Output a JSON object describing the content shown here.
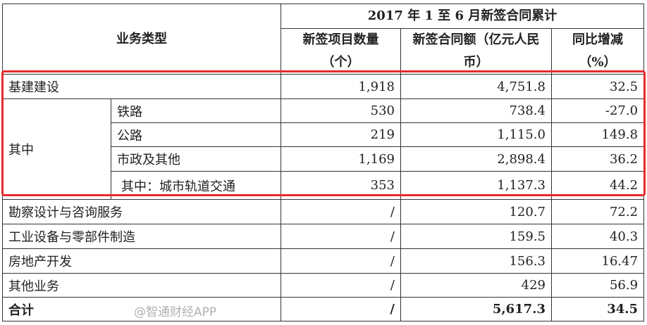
{
  "header": {
    "business_type": "业务类型",
    "period": "2017 年 1 至 6 月新签合同累计",
    "col_count": "新签项目数量（个）",
    "col_amount": "新签合同额（亿元人民币）",
    "col_yoy": "同比增减（%）"
  },
  "infra": {
    "label": "基建建设",
    "count": "1,918",
    "amount": "4,751.8",
    "yoy": "32.5"
  },
  "of_which": "其中",
  "infra_sub": [
    {
      "label": "铁路",
      "count": "530",
      "amount": "738.4",
      "yoy": "-27.0"
    },
    {
      "label": "公路",
      "count": "219",
      "amount": "1,115.0",
      "yoy": "149.8"
    },
    {
      "label": "市政及其他",
      "count": "1,169",
      "amount": "2,898.4",
      "yoy": "36.2"
    },
    {
      "label": "其中：城市轨道交通",
      "count": "353",
      "amount": "1,137.3",
      "yoy": "44.2"
    }
  ],
  "others": [
    {
      "label": "勘察设计与咨询服务",
      "count": "/",
      "amount": "120.7",
      "yoy": "72.2"
    },
    {
      "label": "工业设备与零部件制造",
      "count": "/",
      "amount": "159.5",
      "yoy": "40.3"
    },
    {
      "label": "房地产开发",
      "count": "/",
      "amount": "156.3",
      "yoy": "16.47"
    },
    {
      "label": "其他业务",
      "count": "/",
      "amount": "429",
      "yoy": "56.9"
    }
  ],
  "total": {
    "label": "合计",
    "count": "/",
    "amount": "5,617.3",
    "yoy": "34.5"
  },
  "watermark": "@智通财经APP",
  "highlight_color": "#e82a2a"
}
